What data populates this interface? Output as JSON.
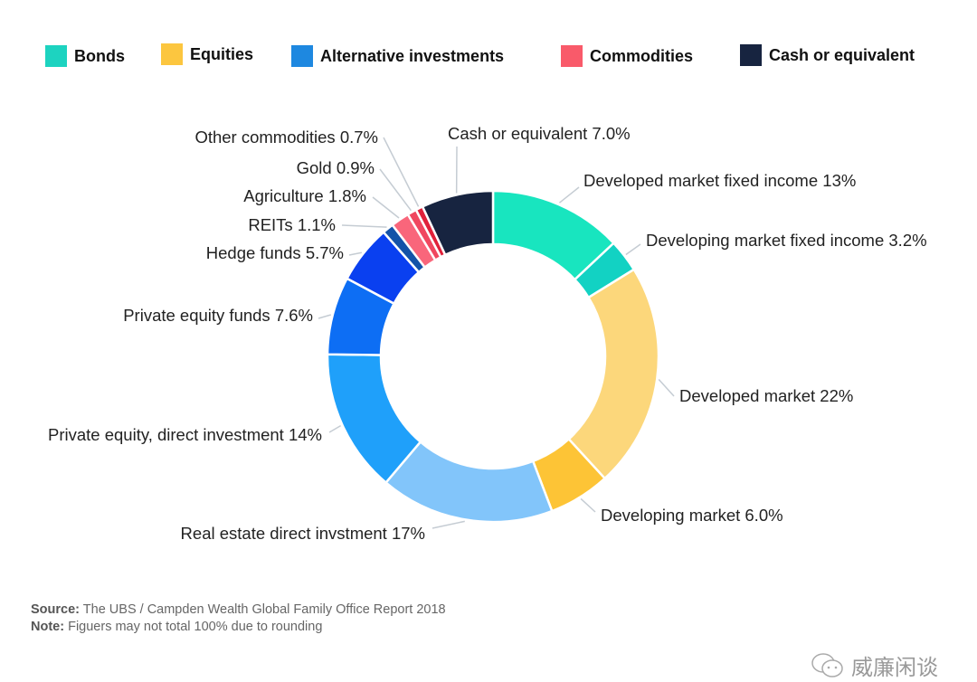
{
  "legend": [
    {
      "label": "Bonds",
      "color": "#1dd3c0"
    },
    {
      "label": "Equities",
      "color": "#fcc63f"
    },
    {
      "label": "Alternative investments",
      "color": "#1e88e0"
    },
    {
      "label": "Commodities",
      "color": "#f95a6a"
    },
    {
      "label": "Cash or equivalent",
      "color": "#172440"
    }
  ],
  "chart_data": {
    "type": "pie",
    "subtype": "donut",
    "start": "top, clockwise",
    "slices": [
      {
        "label": "Developed market fixed income",
        "value": 13,
        "value_label": "13%",
        "group": "Bonds",
        "color": "#18e5bf"
      },
      {
        "label": "Developing market fixed income",
        "value": 3.2,
        "value_label": "3.2%",
        "group": "Bonds",
        "color": "#12d2c3"
      },
      {
        "label": "Developed market",
        "value": 22,
        "value_label": "22%",
        "group": "Equities",
        "color": "#fcd77b"
      },
      {
        "label": "Developing market",
        "value": 6.0,
        "value_label": "6.0%",
        "group": "Equities",
        "color": "#fdc436"
      },
      {
        "label": "Real estate direct invstment",
        "value": 17,
        "value_label": "17%",
        "group": "Alternative investments",
        "color": "#82c5fa"
      },
      {
        "label": "Private equity, direct investment",
        "value": 14,
        "value_label": "14%",
        "group": "Alternative investments",
        "color": "#1fa0fa"
      },
      {
        "label": "Private equity funds",
        "value": 7.6,
        "value_label": "7.6%",
        "group": "Alternative investments",
        "color": "#0d6ef4"
      },
      {
        "label": "Hedge funds",
        "value": 5.7,
        "value_label": "5.7%",
        "group": "Alternative investments",
        "color": "#0a40f0"
      },
      {
        "label": "REITs",
        "value": 1.1,
        "value_label": "1.1%",
        "group": "Alternative investments",
        "color": "#1453a8"
      },
      {
        "label": "Agriculture",
        "value": 1.8,
        "value_label": "1.8%",
        "group": "Commodities",
        "color": "#f9667b"
      },
      {
        "label": "Gold",
        "value": 0.9,
        "value_label": "0.9%",
        "group": "Commodities",
        "color": "#f0475f"
      },
      {
        "label": "Other commodities",
        "value": 0.7,
        "value_label": "0.7%",
        "group": "Commodities",
        "color": "#e0213a"
      },
      {
        "label": "Cash or equivalent",
        "value": 7.0,
        "value_label": "7.0%",
        "group": "Cash or equivalent",
        "color": "#172440"
      }
    ]
  },
  "footer": {
    "source_label": "Source:",
    "source_text": "The UBS / Campden Wealth Global Family Office Report 2018",
    "note_label": "Note:",
    "note_text": "Figuers may not total 100% due to rounding"
  },
  "watermark": {
    "text": "威廉闲谈",
    "icon": "wechat-icon"
  }
}
